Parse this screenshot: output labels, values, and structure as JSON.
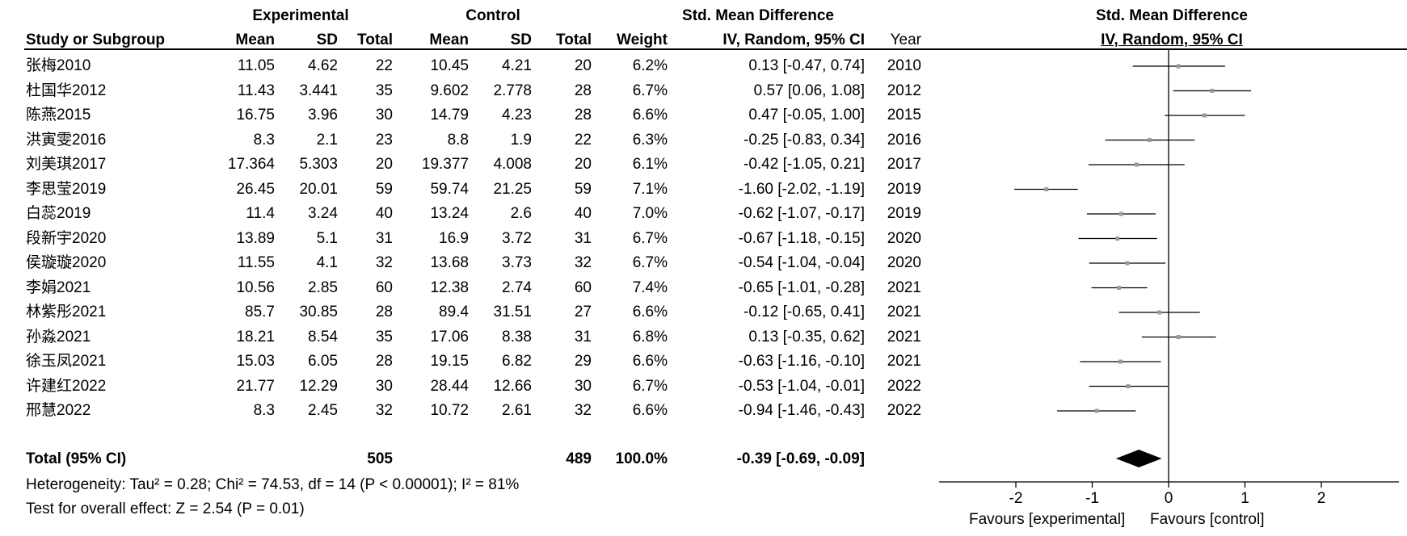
{
  "headers": {
    "group_experimental": "Experimental",
    "group_control": "Control",
    "effect_title": "Std. Mean Difference",
    "col_study": "Study or Subgroup",
    "col_mean_e": "Mean",
    "col_sd_e": "SD",
    "col_total_e": "Total",
    "col_mean_c": "Mean",
    "col_sd_c": "SD",
    "col_total_c": "Total",
    "col_weight": "Weight",
    "col_effect": "IV, Random, 95% CI",
    "col_year": "Year",
    "plot_title": "Std. Mean Difference",
    "plot_subtitle": "IV, Random, 95% CI"
  },
  "studies": [
    {
      "name": "张梅2010",
      "mean_e": "11.05",
      "sd_e": "4.62",
      "total_e": "22",
      "mean_c": "10.45",
      "sd_c": "4.21",
      "total_c": "20",
      "weight": "6.2%",
      "ci_text": "0.13 [-0.47, 0.74]",
      "year": "2010"
    },
    {
      "name": "杜国华2012",
      "mean_e": "11.43",
      "sd_e": "3.441",
      "total_e": "35",
      "mean_c": "9.602",
      "sd_c": "2.778",
      "total_c": "28",
      "weight": "6.7%",
      "ci_text": "0.57 [0.06, 1.08]",
      "year": "2012"
    },
    {
      "name": "陈燕2015",
      "mean_e": "16.75",
      "sd_e": "3.96",
      "total_e": "30",
      "mean_c": "14.79",
      "sd_c": "4.23",
      "total_c": "28",
      "weight": "6.6%",
      "ci_text": "0.47 [-0.05, 1.00]",
      "year": "2015"
    },
    {
      "name": "洪寅雯2016",
      "mean_e": "8.3",
      "sd_e": "2.1",
      "total_e": "23",
      "mean_c": "8.8",
      "sd_c": "1.9",
      "total_c": "22",
      "weight": "6.3%",
      "ci_text": "-0.25 [-0.83, 0.34]",
      "year": "2016"
    },
    {
      "name": "刘美琪2017",
      "mean_e": "17.364",
      "sd_e": "5.303",
      "total_e": "20",
      "mean_c": "19.377",
      "sd_c": "4.008",
      "total_c": "20",
      "weight": "6.1%",
      "ci_text": "-0.42 [-1.05, 0.21]",
      "year": "2017"
    },
    {
      "name": "李思莹2019",
      "mean_e": "26.45",
      "sd_e": "20.01",
      "total_e": "59",
      "mean_c": "59.74",
      "sd_c": "21.25",
      "total_c": "59",
      "weight": "7.1%",
      "ci_text": "-1.60 [-2.02, -1.19]",
      "year": "2019"
    },
    {
      "name": "白蕊2019",
      "mean_e": "11.4",
      "sd_e": "3.24",
      "total_e": "40",
      "mean_c": "13.24",
      "sd_c": "2.6",
      "total_c": "40",
      "weight": "7.0%",
      "ci_text": "-0.62 [-1.07, -0.17]",
      "year": "2019"
    },
    {
      "name": "段新宇2020",
      "mean_e": "13.89",
      "sd_e": "5.1",
      "total_e": "31",
      "mean_c": "16.9",
      "sd_c": "3.72",
      "total_c": "31",
      "weight": "6.7%",
      "ci_text": "-0.67 [-1.18, -0.15]",
      "year": "2020"
    },
    {
      "name": "侯璇璇2020",
      "mean_e": "11.55",
      "sd_e": "4.1",
      "total_e": "32",
      "mean_c": "13.68",
      "sd_c": "3.73",
      "total_c": "32",
      "weight": "6.7%",
      "ci_text": "-0.54 [-1.04, -0.04]",
      "year": "2020"
    },
    {
      "name": "李娟2021",
      "mean_e": "10.56",
      "sd_e": "2.85",
      "total_e": "60",
      "mean_c": "12.38",
      "sd_c": "2.74",
      "total_c": "60",
      "weight": "7.4%",
      "ci_text": "-0.65 [-1.01, -0.28]",
      "year": "2021"
    },
    {
      "name": "林紫彤2021",
      "mean_e": "85.7",
      "sd_e": "30.85",
      "total_e": "28",
      "mean_c": "89.4",
      "sd_c": "31.51",
      "total_c": "27",
      "weight": "6.6%",
      "ci_text": "-0.12 [-0.65, 0.41]",
      "year": "2021"
    },
    {
      "name": "孙淼2021",
      "mean_e": "18.21",
      "sd_e": "8.54",
      "total_e": "35",
      "mean_c": "17.06",
      "sd_c": "8.38",
      "total_c": "31",
      "weight": "6.8%",
      "ci_text": "0.13 [-0.35, 0.62]",
      "year": "2021"
    },
    {
      "name": "徐玉凤2021",
      "mean_e": "15.03",
      "sd_e": "6.05",
      "total_e": "28",
      "mean_c": "19.15",
      "sd_c": "6.82",
      "total_c": "29",
      "weight": "6.6%",
      "ci_text": "-0.63 [-1.16, -0.10]",
      "year": "2021"
    },
    {
      "name": "许建红2022",
      "mean_e": "21.77",
      "sd_e": "12.29",
      "total_e": "30",
      "mean_c": "28.44",
      "sd_c": "12.66",
      "total_c": "30",
      "weight": "6.7%",
      "ci_text": "-0.53 [-1.04, -0.01]",
      "year": "2022"
    },
    {
      "name": "邢慧2022",
      "mean_e": "8.3",
      "sd_e": "2.45",
      "total_e": "32",
      "mean_c": "10.72",
      "sd_c": "2.61",
      "total_c": "32",
      "weight": "6.6%",
      "ci_text": "-0.94 [-1.46, -0.43]",
      "year": "2022"
    }
  ],
  "total": {
    "label": "Total (95% CI)",
    "total_e": "505",
    "total_c": "489",
    "weight": "100.0%",
    "ci_text": "-0.39 [-0.69, -0.09]"
  },
  "footer": {
    "heterogeneity": "Heterogeneity: Tau² = 0.28; Chi² = 74.53, df = 14 (P < 0.00001); I² = 81%",
    "overall_effect": "Test for overall effect: Z = 2.54 (P = 0.01)"
  },
  "axis": {
    "favours_left": "Favours [experimental]",
    "favours_right": "Favours [control]"
  },
  "chart_data": {
    "type": "scatter",
    "subtype": "forest",
    "title": "Std. Mean Difference",
    "subtitle": "IV, Random, 95% CI",
    "xlim": [
      -3,
      3
    ],
    "xticks": [
      -2,
      -1,
      0,
      1,
      2
    ],
    "xticklabels": [
      "-2",
      "-1",
      "0",
      "1",
      "2"
    ],
    "categories": [
      "张梅2010",
      "杜国华2012",
      "陈燕2015",
      "洪寅雯2016",
      "刘美琪2017",
      "李思莹2019",
      "白蕊2019",
      "段新宇2020",
      "侯璇璇2020",
      "李娟2021",
      "林紫彤2021",
      "孙淼2021",
      "徐玉凤2021",
      "许建红2022",
      "邢慧2022"
    ],
    "estimates": [
      0.13,
      0.57,
      0.47,
      -0.25,
      -0.42,
      -1.6,
      -0.62,
      -0.67,
      -0.54,
      -0.65,
      -0.12,
      0.13,
      -0.63,
      -0.53,
      -0.94
    ],
    "ci_low": [
      -0.47,
      0.06,
      -0.05,
      -0.83,
      -1.05,
      -2.02,
      -1.07,
      -1.18,
      -1.04,
      -1.01,
      -0.65,
      -0.35,
      -1.16,
      -1.04,
      -1.46
    ],
    "ci_high": [
      0.74,
      1.08,
      1.0,
      0.34,
      0.21,
      -1.19,
      -0.17,
      -0.15,
      -0.04,
      -0.28,
      0.41,
      0.62,
      -0.1,
      -0.01,
      -0.43
    ],
    "pooled": {
      "estimate": -0.39,
      "ci_low": -0.69,
      "ci_high": -0.09
    },
    "xlabel_left": "Favours [experimental]",
    "xlabel_right": "Favours [control]",
    "colors": {
      "marker": "#9a9a9a",
      "line": "#000000",
      "diamond": "#000000"
    }
  }
}
